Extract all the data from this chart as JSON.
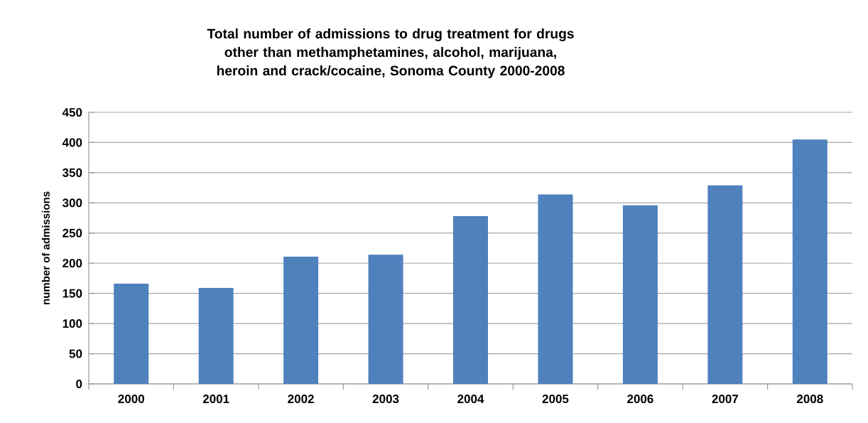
{
  "chart_data": {
    "type": "bar",
    "title": "Total number of admissions to drug treatment for drugs other than methamphetamines, alcohol, marijuana, heroin and crack/cocaine, Sonoma County 2000-2008",
    "ylabel": "number of admissions",
    "categories": [
      "2000",
      "2001",
      "2002",
      "2003",
      "2004",
      "2005",
      "2006",
      "2007",
      "2008"
    ],
    "values": [
      166,
      159,
      211,
      214,
      278,
      314,
      296,
      329,
      405
    ],
    "color": "#4f81bd",
    "ylim": [
      0,
      450
    ],
    "yticks": [
      0,
      50,
      100,
      150,
      200,
      250,
      300,
      350,
      400,
      450
    ],
    "grid": "y"
  }
}
